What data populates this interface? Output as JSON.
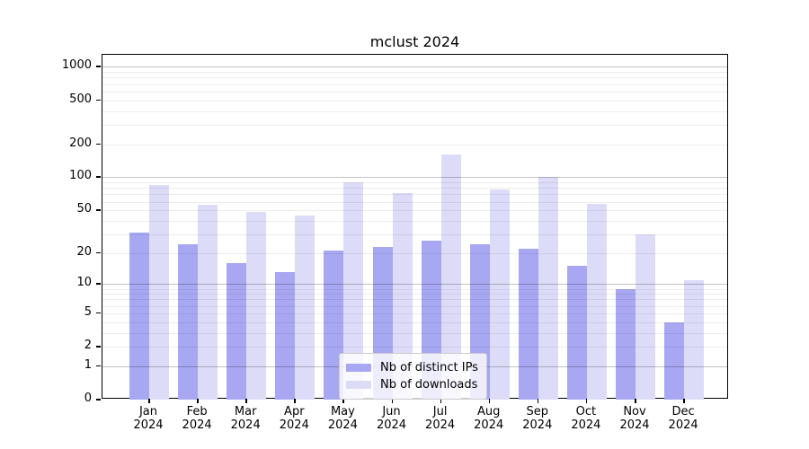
{
  "chart_data": {
    "type": "bar",
    "title": "mclust 2024",
    "categories": [
      "Jan",
      "Feb",
      "Mar",
      "Apr",
      "May",
      "Jun",
      "Jul",
      "Aug",
      "Sep",
      "Oct",
      "Nov",
      "Dec"
    ],
    "category_year": "2024",
    "series": [
      {
        "name": "Nb of distinct IPs",
        "color": "#a7a7f2",
        "values": [
          31,
          24,
          16,
          13,
          21,
          23,
          26,
          24,
          22,
          15,
          9,
          4
        ]
      },
      {
        "name": "Nb of downloads",
        "color": "#dcdcf9",
        "values": [
          85,
          56,
          48,
          45,
          90,
          72,
          160,
          78,
          100,
          57,
          30,
          11
        ]
      }
    ],
    "yscale": "log10(value+1)",
    "yticks": [
      0,
      1,
      2,
      5,
      10,
      20,
      50,
      100,
      200,
      500,
      1000
    ],
    "minor_gridlines": [
      3,
      4,
      6,
      7,
      8,
      9,
      30,
      40,
      60,
      70,
      80,
      90,
      300,
      400,
      600,
      700,
      800,
      900
    ],
    "major_gridlines": [
      1,
      10,
      100,
      1000
    ],
    "ylim": [
      0,
      1280
    ],
    "xlabel": "",
    "ylabel": "",
    "grid": "horizontal",
    "legend_position": "bottom-center"
  },
  "legend": {
    "items": [
      {
        "label": "Nb of distinct IPs",
        "color": "#a7a7f2"
      },
      {
        "label": "Nb of downloads",
        "color": "#dcdcf9"
      }
    ]
  },
  "colors": {
    "bar_dark": "#a7a7f2",
    "bar_light": "#dcdcf9",
    "grid_major": "#c2c2c2",
    "grid_minor": "#ededed",
    "axis": "#000000"
  }
}
